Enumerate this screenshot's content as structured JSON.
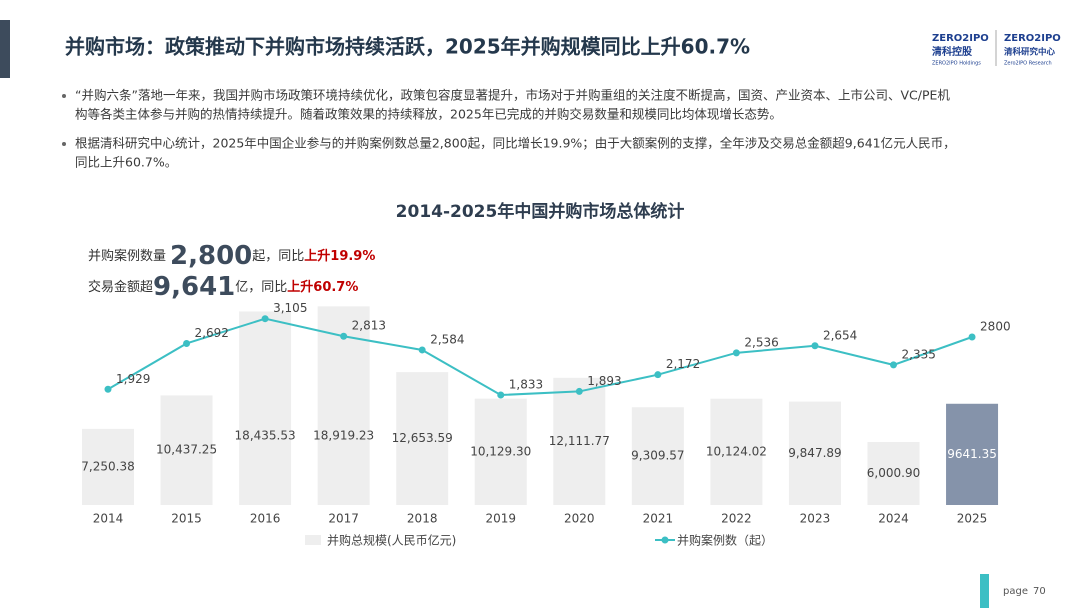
{
  "header": {
    "title": "并购市场：政策推动下并购市场持续活跃，2025年并购规模同比上升60.7%",
    "logos": [
      "ZERO2IPO",
      "清科控股",
      "ZERO2IPO Holdings",
      "ZERO2IPO",
      "清科研究中心",
      "Zero2IPO Research"
    ]
  },
  "bullets": [
    [
      "“并购六条”落地一年来，我国并购市场政策环境持续优化，政策包容度显著提升，市场对于并购重组的关注度不断提高，国资、产业资本、上市公司、VC/PE机",
      "构等各类主体参与并购的热情持续提升。随着政策效果的持续释放，2025年已完成的并购交易数量和规模同比均体现增长态势。"
    ],
    [
      "根据清科研究中心统计，2025年中国企业参与的并购案例数总量2,800起，同比增长19.9%；由于大额案例的支撑，全年涉及交易总金额超9,641亿元人民币，",
      "同比上升60.7%。"
    ]
  ],
  "callouts": [
    {
      "prefix": "并购案例数量",
      "number": "2,800",
      "mid": "起，同比",
      "highlight": "上升19.9%"
    },
    {
      "prefix": "交易金额超",
      "number": "9,641",
      "mid": "亿，同比",
      "highlight": "上升60.7%"
    }
  ],
  "chart_data": {
    "type": "bar-line",
    "title": "2014-2025年中国并购市场总体统计",
    "categories": [
      "2014",
      "2015",
      "2016",
      "2017",
      "2018",
      "2019",
      "2020",
      "2021",
      "2022",
      "2023",
      "2024",
      "2025"
    ],
    "series": [
      {
        "name": "并购总规模(人民币亿元)",
        "type": "bar",
        "color": "#eeeeee",
        "colors": [
          "#eeeeee",
          "#eeeeee",
          "#eeeeee",
          "#eeeeee",
          "#eeeeee",
          "#eeeeee",
          "#eeeeee",
          "#eeeeee",
          "#eeeeee",
          "#eeeeee",
          "#eeeeee",
          "#8593aa"
        ],
        "values": [
          7250.38,
          10437.25,
          18435.53,
          18919.23,
          12653.59,
          10129.3,
          12111.77,
          9309.57,
          10124.02,
          9847.89,
          6000.9,
          9641.35
        ],
        "value_labels": [
          "7,250.38",
          "10,437.25",
          "18,435.53",
          "18,919.23",
          "12,653.59",
          "10,129.30",
          "12,111.77",
          "9,309.57",
          "10,124.02",
          "9,847.89",
          "6,000.90",
          "9641.35"
        ]
      },
      {
        "name": "并购案例数（起）",
        "type": "line",
        "axis": "y2",
        "color": "#3cbfc4",
        "values": [
          1929,
          2692,
          3105,
          2813,
          2584,
          1833,
          1893,
          2172,
          2536,
          2654,
          2335,
          2800
        ],
        "value_labels": [
          "1,929",
          "2,692",
          "3,105",
          "2,813",
          "2,584",
          "1,833",
          "1,893",
          "2,172",
          "2,536",
          "2,654",
          "2,335",
          "2800"
        ]
      }
    ],
    "ylim": [
      0,
      20000
    ],
    "y2lim": [
      0,
      3500
    ],
    "grid": false
  },
  "footer": {
    "page_label": "page",
    "page_number": "70"
  }
}
